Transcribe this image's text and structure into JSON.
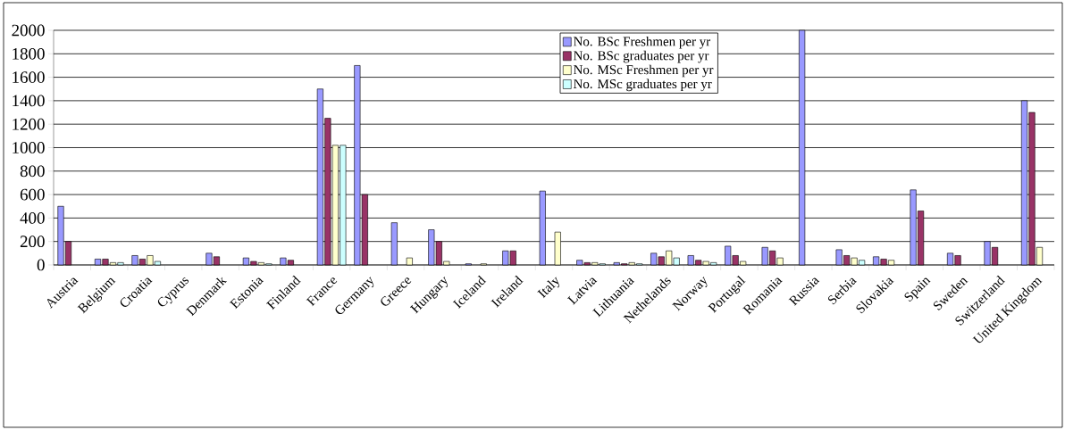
{
  "chart_data": {
    "type": "bar",
    "categories": [
      "Austria",
      "Belgium",
      "Croatia",
      "Cyprus",
      "Denmark",
      "Estonia",
      "Finland",
      "France",
      "Germany",
      "Greece",
      "Hungary",
      "Iceland",
      "Ireland",
      "Italy",
      "Latvia",
      "Lithuania",
      "Nethelands",
      "Norway",
      "Portugal",
      "Romania",
      "Russia",
      "Serbia",
      "Slovakia",
      "Spain",
      "Sweden",
      "Switzerland",
      "United Kingdom"
    ],
    "series": [
      {
        "name": "No. BSc Freshmen per yr",
        "color": "#9999ff",
        "values": [
          500,
          50,
          80,
          null,
          100,
          60,
          60,
          1500,
          1700,
          360,
          300,
          10,
          120,
          630,
          40,
          20,
          100,
          80,
          160,
          150,
          2000,
          130,
          70,
          640,
          100,
          200,
          1400
        ]
      },
      {
        "name": "No. BSc graduates per yr",
        "color": "#993366",
        "values": [
          200,
          50,
          50,
          null,
          70,
          30,
          40,
          1250,
          600,
          null,
          200,
          null,
          120,
          null,
          20,
          10,
          70,
          40,
          80,
          120,
          null,
          80,
          50,
          460,
          80,
          150,
          1300
        ]
      },
      {
        "name": "No. MSc Freshmen per yr",
        "color": "#ffffcc",
        "values": [
          null,
          20,
          80,
          null,
          null,
          20,
          null,
          1020,
          null,
          60,
          30,
          10,
          null,
          280,
          20,
          20,
          120,
          30,
          30,
          60,
          null,
          60,
          40,
          null,
          null,
          null,
          150
        ]
      },
      {
        "name": "No. MSc graduates per yr",
        "color": "#ccffff",
        "values": [
          null,
          20,
          30,
          null,
          null,
          10,
          null,
          1020,
          null,
          null,
          null,
          null,
          null,
          null,
          10,
          10,
          60,
          20,
          null,
          null,
          null,
          40,
          null,
          null,
          null,
          null,
          null
        ]
      }
    ],
    "ylim": [
      0,
      2000
    ],
    "yticks": [
      0,
      200,
      400,
      600,
      800,
      1000,
      1200,
      1400,
      1600,
      1800,
      2000
    ],
    "grid": "y",
    "legend": "top"
  }
}
